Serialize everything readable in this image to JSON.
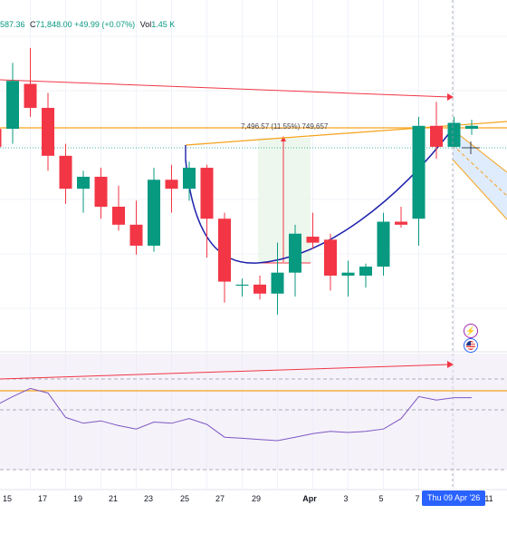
{
  "legend": {
    "partial_value": "587.36",
    "close_label": "C",
    "close_value": "71,848.00",
    "change": "+49.99 (+0.07%)",
    "vol_label": "Vol",
    "vol_value": "1.45 K"
  },
  "measure": {
    "text": "7,496.57 (11.55%) 749,657"
  },
  "crosshair": {
    "label": "Thu 09 Apr '26"
  },
  "colors": {
    "up": "#089981",
    "down": "#f23645",
    "trend_red": "#f23645",
    "trend_orange": "#f7a21b",
    "curve_blue": "#1e22aa",
    "indicator": "#7e57c2",
    "measure_fill": "#e8f5e9",
    "channel_fill": "#dbeafe"
  },
  "icons": {
    "flash": "flash-icon",
    "flag": "us-flag-icon"
  },
  "chart_data": {
    "type": "candlestick",
    "x_tick_labels": [
      "15",
      "17",
      "19",
      "21",
      "23",
      "25",
      "27",
      "29",
      "Apr",
      "3",
      "5",
      "7",
      "11"
    ],
    "candles": [
      {
        "o": 70200,
        "h": 71100,
        "l": 69300,
        "c": 69600
      },
      {
        "o": 70200,
        "h": 72400,
        "l": 69700,
        "c": 71800
      },
      {
        "o": 71700,
        "h": 72900,
        "l": 70600,
        "c": 70900
      },
      {
        "o": 70900,
        "h": 71400,
        "l": 68800,
        "c": 69300
      },
      {
        "o": 69300,
        "h": 69700,
        "l": 67700,
        "c": 68200
      },
      {
        "o": 68200,
        "h": 68800,
        "l": 67400,
        "c": 68600
      },
      {
        "o": 68600,
        "h": 68900,
        "l": 67200,
        "c": 67600
      },
      {
        "o": 67600,
        "h": 68300,
        "l": 66800,
        "c": 67000
      },
      {
        "o": 67000,
        "h": 67800,
        "l": 66000,
        "c": 66300
      },
      {
        "o": 66300,
        "h": 68900,
        "l": 66100,
        "c": 68500
      },
      {
        "o": 68500,
        "h": 69000,
        "l": 67400,
        "c": 68200
      },
      {
        "o": 68200,
        "h": 69100,
        "l": 67800,
        "c": 68900
      },
      {
        "o": 68900,
        "h": 69000,
        "l": 65900,
        "c": 67200
      },
      {
        "o": 67200,
        "h": 67400,
        "l": 64400,
        "c": 65100
      },
      {
        "o": 65000,
        "h": 65200,
        "l": 64600,
        "c": 65000
      },
      {
        "o": 65000,
        "h": 65300,
        "l": 64500,
        "c": 64700
      },
      {
        "o": 64700,
        "h": 66400,
        "l": 64000,
        "c": 65400
      },
      {
        "o": 65400,
        "h": 67000,
        "l": 64600,
        "c": 66700
      },
      {
        "o": 66600,
        "h": 67400,
        "l": 66200,
        "c": 66400
      },
      {
        "o": 66500,
        "h": 66700,
        "l": 64800,
        "c": 65300
      },
      {
        "o": 65300,
        "h": 65800,
        "l": 64600,
        "c": 65400
      },
      {
        "o": 65300,
        "h": 65700,
        "l": 64900,
        "c": 65600
      },
      {
        "o": 65600,
        "h": 67400,
        "l": 65300,
        "c": 67100
      },
      {
        "o": 67100,
        "h": 67600,
        "l": 66900,
        "c": 67000
      },
      {
        "o": 67200,
        "h": 70600,
        "l": 66300,
        "c": 70300
      },
      {
        "o": 70300,
        "h": 71100,
        "l": 69200,
        "c": 69600
      },
      {
        "o": 69600,
        "h": 70600,
        "l": 69600,
        "c": 70400
      },
      {
        "o": 70200,
        "h": 70500,
        "l": 70000,
        "c": 70300
      }
    ],
    "indicator_values": [
      55,
      63,
      70,
      66,
      45,
      40,
      42,
      38,
      35,
      41,
      40,
      44,
      39,
      28,
      27,
      26,
      25,
      28,
      31,
      33,
      32,
      33,
      35,
      44,
      63,
      60,
      62,
      62
    ],
    "indicator_range": [
      0,
      100
    ],
    "price_range": [
      63000,
      74500
    ],
    "grid": true
  }
}
